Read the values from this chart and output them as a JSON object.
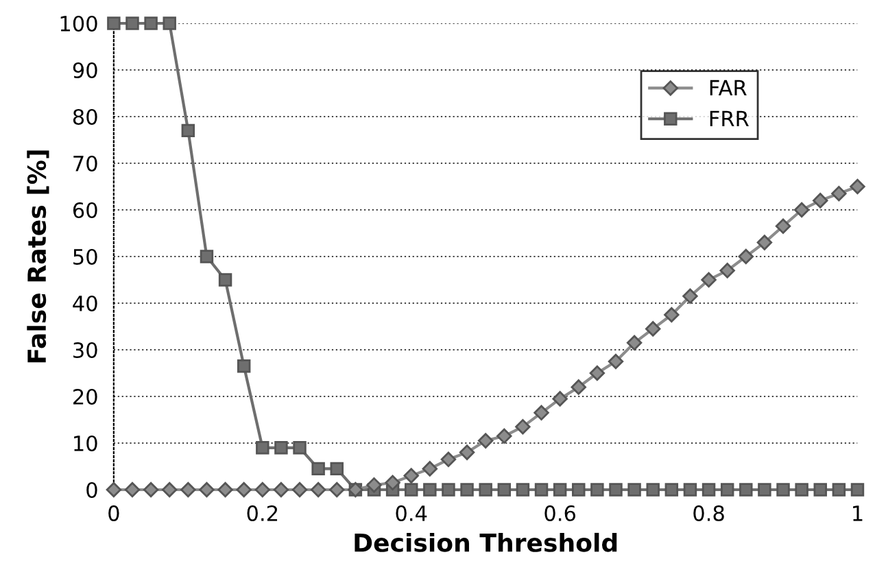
{
  "chart_data": {
    "type": "line",
    "xlabel": "Decision Threshold",
    "ylabel": "False Rates [%]",
    "x": [
      0,
      0.025,
      0.05,
      0.075,
      0.1,
      0.125,
      0.15,
      0.175,
      0.2,
      0.225,
      0.25,
      0.275,
      0.3,
      0.325,
      0.35,
      0.375,
      0.4,
      0.425,
      0.45,
      0.475,
      0.5,
      0.525,
      0.55,
      0.575,
      0.6,
      0.625,
      0.65,
      0.675,
      0.7,
      0.725,
      0.75,
      0.775,
      0.8,
      0.825,
      0.85,
      0.875,
      0.9,
      0.925,
      0.95,
      0.975,
      1
    ],
    "series": [
      {
        "name": "FAR",
        "color": "#8c8c8c",
        "marker": "diamond",
        "values": [
          0,
          0,
          0,
          0,
          0,
          0,
          0,
          0,
          0,
          0,
          0,
          0,
          0,
          0,
          1,
          1.5,
          3,
          4.5,
          6.5,
          8,
          10.5,
          11.5,
          13.5,
          16.5,
          19.5,
          22,
          25,
          27.5,
          31.5,
          34.5,
          37.5,
          41.5,
          45,
          47,
          50,
          53,
          56.5,
          60,
          62,
          63.5,
          65
        ]
      },
      {
        "name": "FRR",
        "color": "#6e6e6e",
        "marker": "square",
        "values": [
          100,
          100,
          100,
          100,
          77,
          50,
          45,
          26.5,
          9,
          9,
          9,
          4.5,
          4.5,
          0,
          0,
          0,
          0,
          0,
          0,
          0,
          0,
          0,
          0,
          0,
          0,
          0,
          0,
          0,
          0,
          0,
          0,
          0,
          0,
          0,
          0,
          0,
          0,
          0,
          0,
          0,
          0
        ]
      }
    ],
    "xlim": [
      0,
      1
    ],
    "xticks": [
      0,
      0.2,
      0.4,
      0.6,
      0.8,
      1
    ],
    "ylim": [
      0,
      100
    ],
    "yticks": [
      0,
      10,
      20,
      30,
      40,
      50,
      60,
      70,
      80,
      90,
      100
    ],
    "grid": "y",
    "legend": "top right",
    "line_style": "solid"
  }
}
